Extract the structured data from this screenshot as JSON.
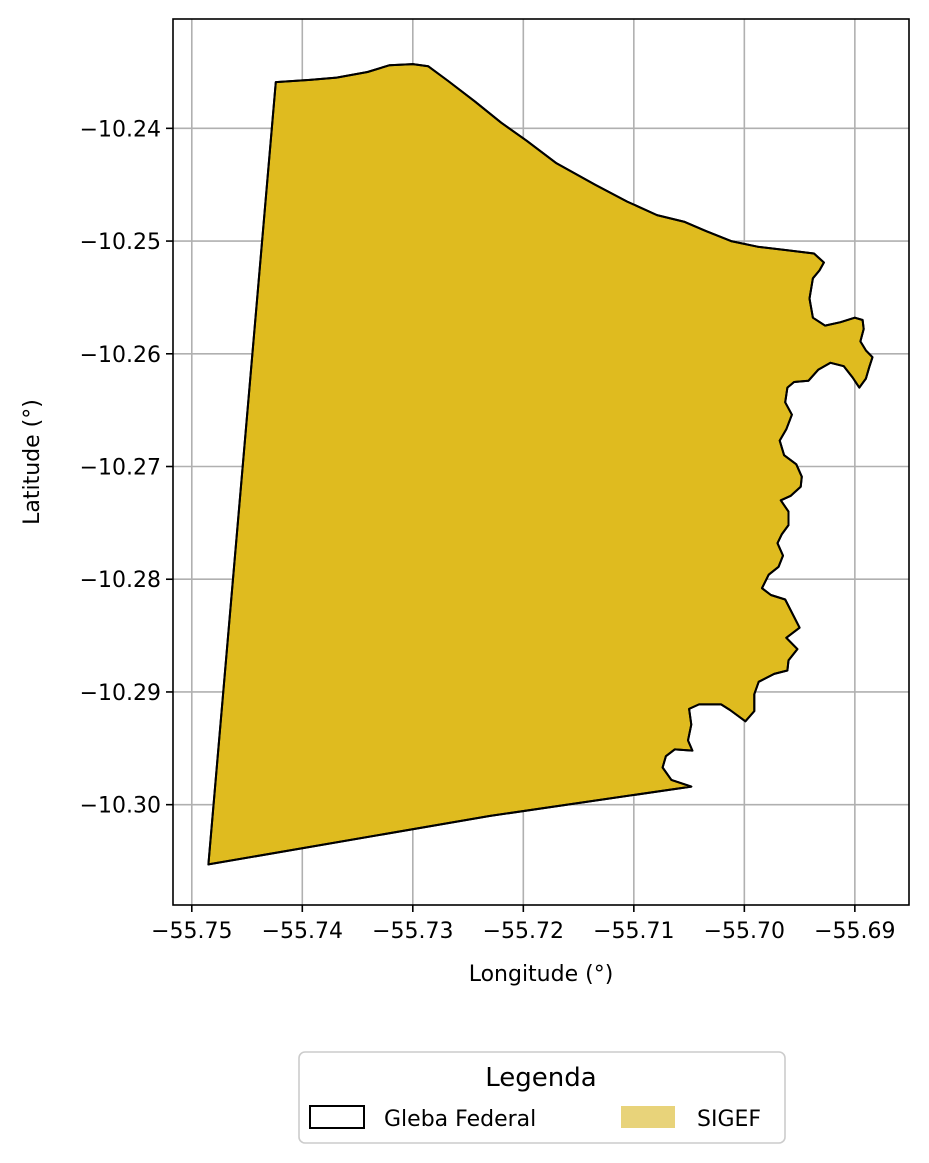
{
  "chart_data": {
    "type": "map",
    "xlabel": "Longitude (°)",
    "ylabel": "Latitude (°)",
    "xlim": [
      -55.7517,
      -55.6851
    ],
    "ylim": [
      -10.3089,
      -10.2303
    ],
    "x_ticks": [
      -55.75,
      -55.74,
      -55.73,
      -55.72,
      -55.71,
      -55.7,
      -55.69
    ],
    "x_tick_labels": [
      "−55.75",
      "−55.74",
      "−55.73",
      "−55.72",
      "−55.71",
      "−55.70",
      "−55.69"
    ],
    "y_ticks": [
      -10.24,
      -10.25,
      -10.26,
      -10.27,
      -10.28,
      -10.29,
      -10.3
    ],
    "y_tick_labels": [
      "−10.24",
      "−10.25",
      "−10.26",
      "−10.27",
      "−10.28",
      "−10.29",
      "−10.30"
    ],
    "grid": true,
    "legend": {
      "title": "Legenda",
      "placement": "bottom-center",
      "entries": [
        {
          "label": "Gleba Federal",
          "style": "outline",
          "color": "#000000"
        },
        {
          "label": "SIGEF",
          "style": "fill",
          "color": "#e8d37a"
        }
      ]
    },
    "layers": [
      {
        "name": "SIGEF",
        "fill": "#dfbb1f",
        "stroke": "#000000",
        "coordinates": [
          [
            -55.7424,
            -10.2359
          ],
          [
            -55.7393,
            -10.2357
          ],
          [
            -55.7369,
            -10.2355
          ],
          [
            -55.7341,
            -10.235
          ],
          [
            -55.7321,
            -10.2344
          ],
          [
            -55.73,
            -10.2343
          ],
          [
            -55.7286,
            -10.2345
          ],
          [
            -55.7268,
            -10.2358
          ],
          [
            -55.7244,
            -10.2376
          ],
          [
            -55.722,
            -10.2395
          ],
          [
            -55.7197,
            -10.2411
          ],
          [
            -55.717,
            -10.2431
          ],
          [
            -55.7135,
            -10.245
          ],
          [
            -55.7106,
            -10.2465
          ],
          [
            -55.7079,
            -10.2477
          ],
          [
            -55.7054,
            -10.2483
          ],
          [
            -55.7035,
            -10.2491
          ],
          [
            -55.7012,
            -10.25
          ],
          [
            -55.6988,
            -10.2505
          ],
          [
            -55.6962,
            -10.2508
          ],
          [
            -55.6937,
            -10.2511
          ],
          [
            -55.6928,
            -10.2519
          ],
          [
            -55.6932,
            -10.2526
          ],
          [
            -55.6938,
            -10.2533
          ],
          [
            -55.6941,
            -10.2551
          ],
          [
            -55.6938,
            -10.2568
          ],
          [
            -55.6927,
            -10.2575
          ],
          [
            -55.6913,
            -10.2572
          ],
          [
            -55.69,
            -10.2568
          ],
          [
            -55.6893,
            -10.257
          ],
          [
            -55.6892,
            -10.2578
          ],
          [
            -55.6895,
            -10.2589
          ],
          [
            -55.689,
            -10.2597
          ],
          [
            -55.6884,
            -10.2603
          ],
          [
            -55.6887,
            -10.2612
          ],
          [
            -55.689,
            -10.2622
          ],
          [
            -55.6896,
            -10.263
          ],
          [
            -55.6902,
            -10.2621
          ],
          [
            -55.691,
            -10.2611
          ],
          [
            -55.6922,
            -10.2608
          ],
          [
            -55.6933,
            -10.2614
          ],
          [
            -55.6942,
            -10.2624
          ],
          [
            -55.6955,
            -10.2625
          ],
          [
            -55.6961,
            -10.263
          ],
          [
            -55.6963,
            -10.2643
          ],
          [
            -55.6957,
            -10.2654
          ],
          [
            -55.6962,
            -10.2667
          ],
          [
            -55.6968,
            -10.2677
          ],
          [
            -55.6964,
            -10.269
          ],
          [
            -55.6953,
            -10.2698
          ],
          [
            -55.6948,
            -10.2709
          ],
          [
            -55.6949,
            -10.2718
          ],
          [
            -55.6958,
            -10.2726
          ],
          [
            -55.6967,
            -10.273
          ],
          [
            -55.696,
            -10.274
          ],
          [
            -55.696,
            -10.2752
          ],
          [
            -55.6966,
            -10.276
          ],
          [
            -55.697,
            -10.2768
          ],
          [
            -55.6965,
            -10.2779
          ],
          [
            -55.6969,
            -10.2789
          ],
          [
            -55.6978,
            -10.2796
          ],
          [
            -55.6984,
            -10.2808
          ],
          [
            -55.6976,
            -10.2814
          ],
          [
            -55.6963,
            -10.2818
          ],
          [
            -55.695,
            -10.2843
          ],
          [
            -55.6962,
            -10.2852
          ],
          [
            -55.6952,
            -10.2862
          ],
          [
            -55.696,
            -10.2872
          ],
          [
            -55.6961,
            -10.2881
          ],
          [
            -55.6973,
            -10.2884
          ],
          [
            -55.6987,
            -10.2891
          ],
          [
            -55.6991,
            -10.2902
          ],
          [
            -55.6991,
            -10.2917
          ],
          [
            -55.6999,
            -10.2926
          ],
          [
            -55.7013,
            -10.2916
          ],
          [
            -55.7021,
            -10.2911
          ],
          [
            -55.7041,
            -10.2911
          ],
          [
            -55.705,
            -10.2915
          ],
          [
            -55.7048,
            -10.2929
          ],
          [
            -55.7051,
            -10.2943
          ],
          [
            -55.7047,
            -10.2952
          ],
          [
            -55.7063,
            -10.2951
          ],
          [
            -55.7071,
            -10.2957
          ],
          [
            -55.7074,
            -10.2967
          ],
          [
            -55.7066,
            -10.2978
          ],
          [
            -55.7048,
            -10.2984
          ],
          [
            -55.723,
            -10.301
          ],
          [
            -55.7485,
            -10.3053
          ],
          [
            -55.7424,
            -10.2359
          ]
        ]
      },
      {
        "name": "Gleba Federal",
        "fill": "none",
        "stroke": "#000000",
        "coordinates": [
          [
            -55.7424,
            -10.2359
          ],
          [
            -55.7393,
            -10.2357
          ],
          [
            -55.7369,
            -10.2355
          ],
          [
            -55.7341,
            -10.235
          ],
          [
            -55.7321,
            -10.2344
          ],
          [
            -55.73,
            -10.2343
          ],
          [
            -55.7286,
            -10.2345
          ],
          [
            -55.7268,
            -10.2358
          ],
          [
            -55.7244,
            -10.2376
          ],
          [
            -55.722,
            -10.2395
          ],
          [
            -55.7197,
            -10.2411
          ],
          [
            -55.717,
            -10.2431
          ],
          [
            -55.7135,
            -10.245
          ],
          [
            -55.7106,
            -10.2465
          ],
          [
            -55.7079,
            -10.2477
          ],
          [
            -55.7054,
            -10.2483
          ],
          [
            -55.7035,
            -10.2491
          ],
          [
            -55.7012,
            -10.25
          ],
          [
            -55.6988,
            -10.2505
          ],
          [
            -55.6962,
            -10.2508
          ],
          [
            -55.6937,
            -10.2511
          ],
          [
            -55.6928,
            -10.2519
          ],
          [
            -55.6932,
            -10.2526
          ],
          [
            -55.6938,
            -10.2533
          ],
          [
            -55.6941,
            -10.2551
          ],
          [
            -55.6938,
            -10.2568
          ],
          [
            -55.6927,
            -10.2575
          ],
          [
            -55.6913,
            -10.2572
          ],
          [
            -55.69,
            -10.2568
          ],
          [
            -55.6893,
            -10.257
          ],
          [
            -55.6892,
            -10.2578
          ],
          [
            -55.6895,
            -10.2589
          ],
          [
            -55.689,
            -10.2597
          ],
          [
            -55.6884,
            -10.2603
          ],
          [
            -55.6887,
            -10.2612
          ],
          [
            -55.689,
            -10.2622
          ],
          [
            -55.6896,
            -10.263
          ],
          [
            -55.6902,
            -10.2621
          ],
          [
            -55.691,
            -10.2611
          ],
          [
            -55.6922,
            -10.2608
          ],
          [
            -55.6933,
            -10.2614
          ],
          [
            -55.6942,
            -10.2624
          ],
          [
            -55.6955,
            -10.2625
          ],
          [
            -55.6961,
            -10.263
          ],
          [
            -55.6963,
            -10.2643
          ],
          [
            -55.6957,
            -10.2654
          ],
          [
            -55.6962,
            -10.2667
          ],
          [
            -55.6968,
            -10.2677
          ],
          [
            -55.6964,
            -10.269
          ],
          [
            -55.6953,
            -10.2698
          ],
          [
            -55.6948,
            -10.2709
          ],
          [
            -55.6949,
            -10.2718
          ],
          [
            -55.6958,
            -10.2726
          ],
          [
            -55.6967,
            -10.273
          ],
          [
            -55.696,
            -10.274
          ],
          [
            -55.696,
            -10.2752
          ],
          [
            -55.6966,
            -10.276
          ],
          [
            -55.697,
            -10.2768
          ],
          [
            -55.6965,
            -10.2779
          ],
          [
            -55.6969,
            -10.2789
          ],
          [
            -55.6978,
            -10.2796
          ],
          [
            -55.6984,
            -10.2808
          ],
          [
            -55.6976,
            -10.2814
          ],
          [
            -55.6963,
            -10.2818
          ],
          [
            -55.695,
            -10.2843
          ],
          [
            -55.6962,
            -10.2852
          ],
          [
            -55.6952,
            -10.2862
          ],
          [
            -55.696,
            -10.2872
          ],
          [
            -55.6961,
            -10.2881
          ],
          [
            -55.6973,
            -10.2884
          ],
          [
            -55.6987,
            -10.2891
          ],
          [
            -55.6991,
            -10.2902
          ],
          [
            -55.6991,
            -10.2917
          ],
          [
            -55.6999,
            -10.2926
          ],
          [
            -55.7013,
            -10.2916
          ],
          [
            -55.7021,
            -10.2911
          ],
          [
            -55.7041,
            -10.2911
          ],
          [
            -55.705,
            -10.2915
          ],
          [
            -55.7048,
            -10.2929
          ],
          [
            -55.7051,
            -10.2943
          ],
          [
            -55.7047,
            -10.2952
          ],
          [
            -55.7063,
            -10.2951
          ],
          [
            -55.7071,
            -10.2957
          ],
          [
            -55.7074,
            -10.2967
          ],
          [
            -55.7066,
            -10.2978
          ],
          [
            -55.7048,
            -10.2984
          ],
          [
            -55.723,
            -10.301
          ],
          [
            -55.7485,
            -10.3053
          ],
          [
            -55.7424,
            -10.2359
          ]
        ]
      }
    ]
  }
}
